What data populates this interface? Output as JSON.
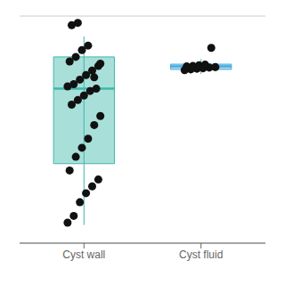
{
  "chart_data": {
    "type": "box",
    "categories": [
      "Cyst wall",
      "Cyst fluid"
    ],
    "boxes": [
      {
        "whisker_low": 0.08,
        "q1": 0.35,
        "median": 0.68,
        "q3": 0.82,
        "whisker_high": 0.91,
        "points": [
          0.09,
          0.12,
          0.18,
          0.22,
          0.25,
          0.28,
          0.32,
          0.38,
          0.42,
          0.46,
          0.52,
          0.56,
          0.61,
          0.63,
          0.65,
          0.67,
          0.68,
          0.69,
          0.7,
          0.72,
          0.74,
          0.76,
          0.78,
          0.8,
          0.82,
          0.85,
          0.87,
          0.73,
          0.79
        ],
        "outliers": [
          0.96,
          0.97
        ],
        "color": "#3db8aa"
      },
      {
        "whisker_low": 0.745,
        "q1": 0.765,
        "median": 0.778,
        "q3": 0.788,
        "whisker_high": 0.81,
        "points": [
          0.762,
          0.765,
          0.768,
          0.77,
          0.773,
          0.775,
          0.778,
          0.78,
          0.783,
          0.786
        ],
        "outliers": [
          0.86
        ],
        "color": "#4aabdc"
      }
    ],
    "color": "#111111",
    "ylim": [
      0.0,
      1.0
    ],
    "yticks": [
      0.0,
      0.2,
      0.4,
      0.6,
      0.8,
      1.0
    ],
    "grid": true,
    "tick_labels": "x"
  }
}
